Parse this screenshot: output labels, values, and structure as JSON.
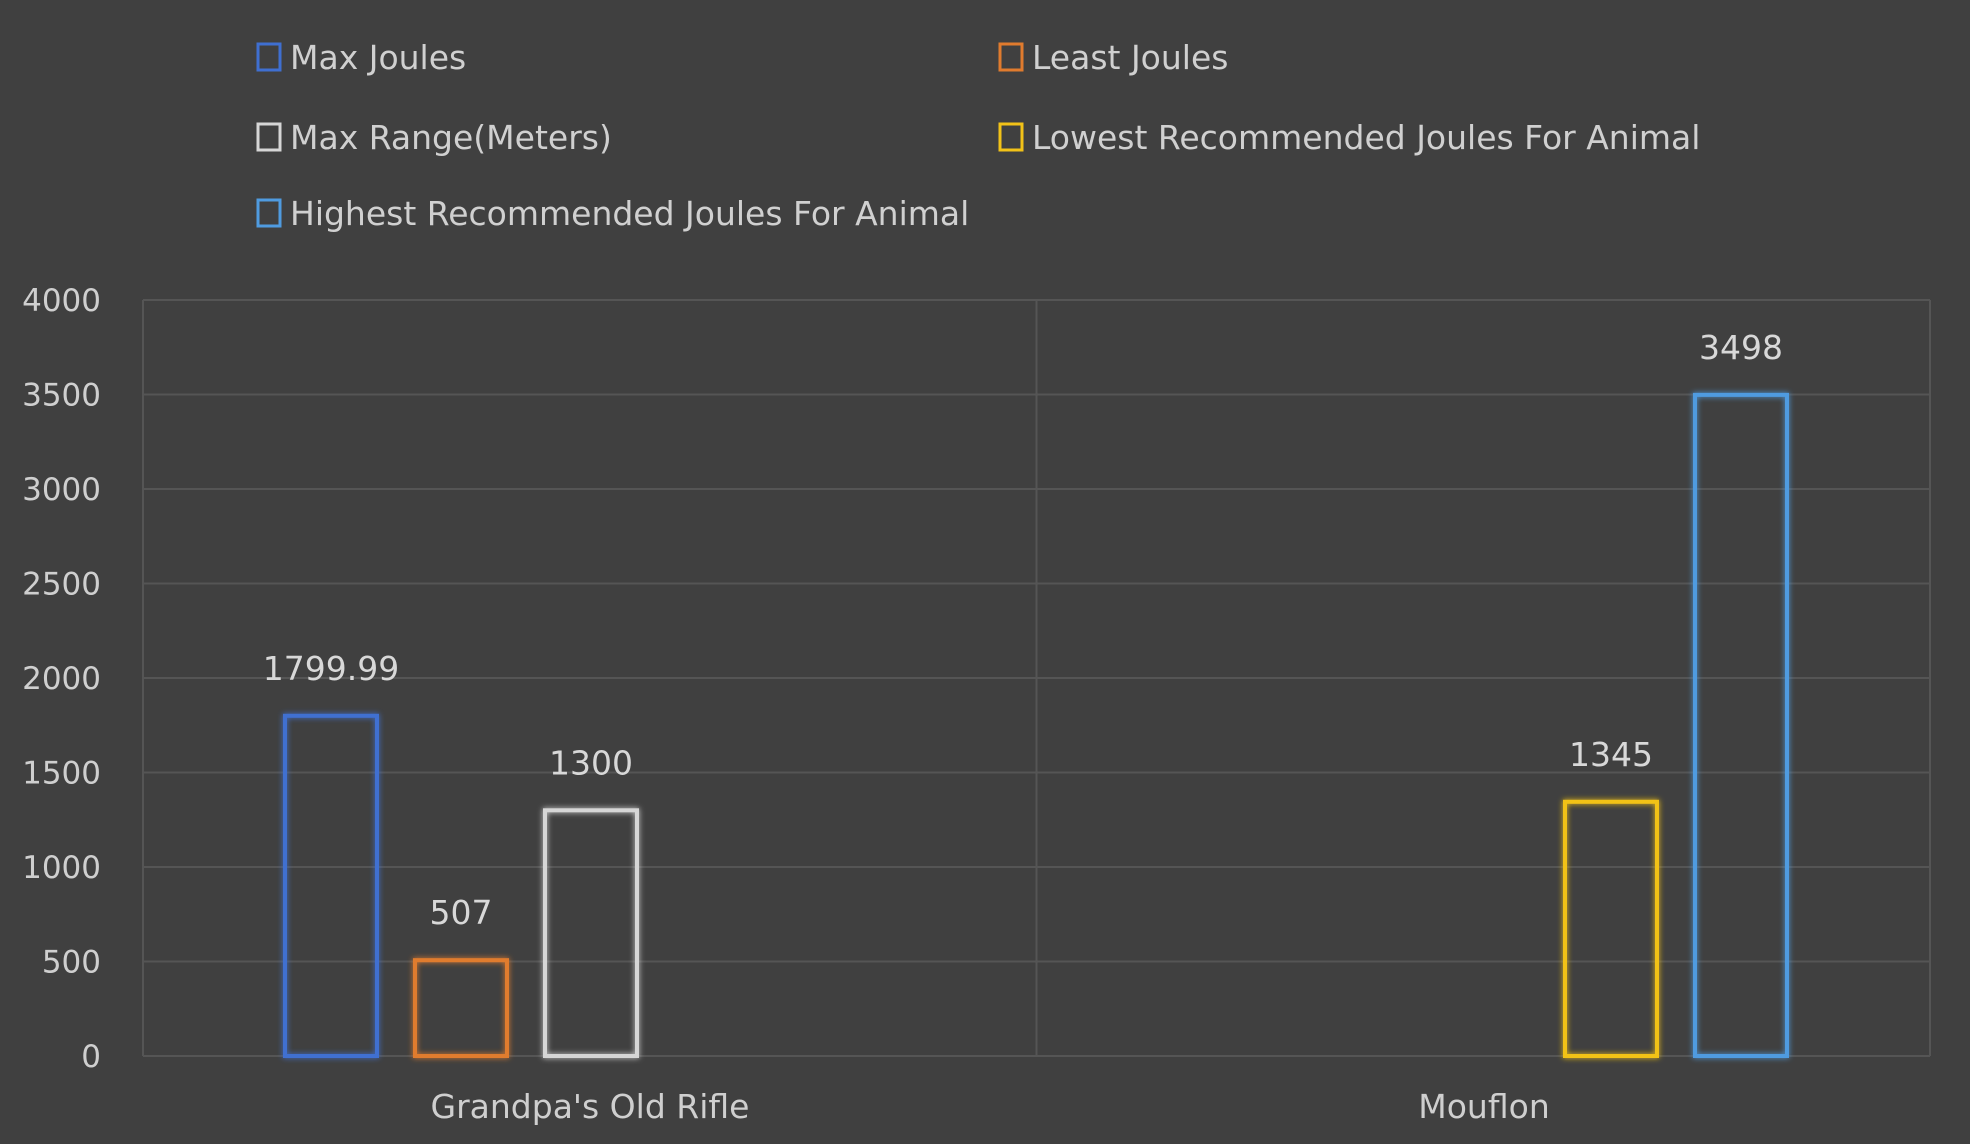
{
  "chart_data": {
    "type": "bar",
    "title": "",
    "xlabel": "",
    "ylabel": "",
    "ylim": [
      0,
      4000
    ],
    "yticks": [
      0,
      500,
      1000,
      1500,
      2000,
      2500,
      3000,
      3500,
      4000
    ],
    "grid": true,
    "legend_placement": "top",
    "categories": [
      "Grandpa's Old Rifle",
      "Mouflon"
    ],
    "series": [
      {
        "name": "Max Joules",
        "color": "#3f6fd1",
        "values": [
          1799.99,
          null
        ],
        "labels": [
          "1799.99",
          ""
        ]
      },
      {
        "name": "Least Joules",
        "color": "#e07b2e",
        "values": [
          507,
          null
        ],
        "labels": [
          "507",
          ""
        ]
      },
      {
        "name": "Max Range(Meters)",
        "color": "#d6d6d6",
        "values": [
          1300,
          null
        ],
        "labels": [
          "1300",
          ""
        ]
      },
      {
        "name": "Lowest Recommended Joules For Animal",
        "color": "#f2c218",
        "values": [
          null,
          1345
        ],
        "labels": [
          "",
          "1345"
        ]
      },
      {
        "name": "Highest Recommended Joules For Animal",
        "color": "#4f9be0",
        "values": [
          null,
          3498
        ],
        "labels": [
          "",
          "3498"
        ]
      }
    ]
  }
}
